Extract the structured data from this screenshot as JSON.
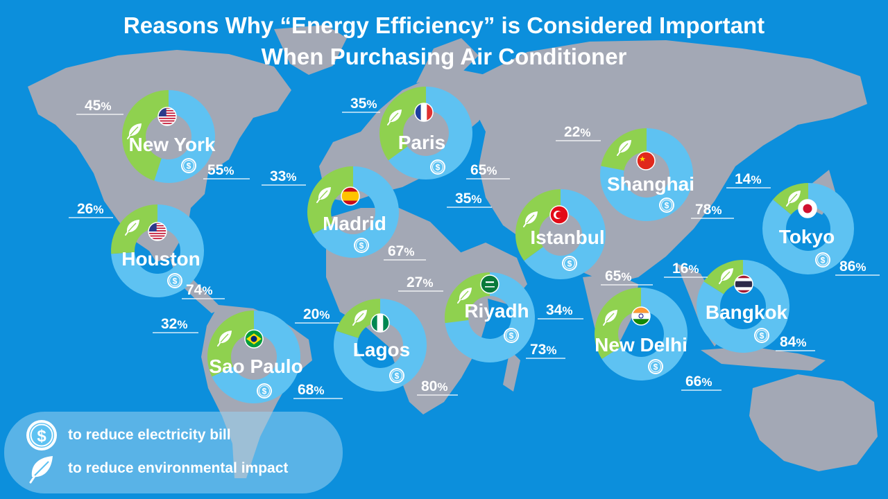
{
  "title": {
    "line1": "Reasons Why “Energy Efficiency” is Considered Important",
    "line2": "When Purchasing Air Conditioner"
  },
  "legend": {
    "bill": "to reduce electricity bill",
    "environment": "to reduce environmental impact"
  },
  "colors": {
    "background": "#0c8fdc",
    "land": "#a3a8b5",
    "environment": "#8fd14f",
    "bill": "#5ec2f2"
  },
  "chart_data": {
    "type": "donut",
    "title": "Reasons Why “Energy Efficiency” is Considered Important When Purchasing Air Conditioner",
    "series": [
      {
        "name": "to reduce environmental impact",
        "color": "#8fd14f"
      },
      {
        "name": "to reduce electricity bill",
        "color": "#5ec2f2"
      }
    ],
    "cities": [
      {
        "name": "New York",
        "flag": "us",
        "environment": 45,
        "bill": 55
      },
      {
        "name": "Paris",
        "flag": "fr",
        "environment": 35,
        "bill": 65
      },
      {
        "name": "Shanghai",
        "flag": "cn",
        "environment": 22,
        "bill": 78
      },
      {
        "name": "Madrid",
        "flag": "es",
        "environment": 33,
        "bill": 67
      },
      {
        "name": "Istanbul",
        "flag": "tr",
        "environment": 35,
        "bill": 65
      },
      {
        "name": "Tokyo",
        "flag": "jp",
        "environment": 14,
        "bill": 86
      },
      {
        "name": "Houston",
        "flag": "us",
        "environment": 26,
        "bill": 74
      },
      {
        "name": "Riyadh",
        "flag": "sa",
        "environment": 27,
        "bill": 73
      },
      {
        "name": "Bangkok",
        "flag": "th",
        "environment": 16,
        "bill": 84
      },
      {
        "name": "New Delhi",
        "flag": "in",
        "environment": 34,
        "bill": 66
      },
      {
        "name": "Sao Paulo",
        "flag": "br",
        "environment": 32,
        "bill": 68
      },
      {
        "name": "Lagos",
        "flag": "ng",
        "environment": 20,
        "bill": 80
      }
    ]
  }
}
